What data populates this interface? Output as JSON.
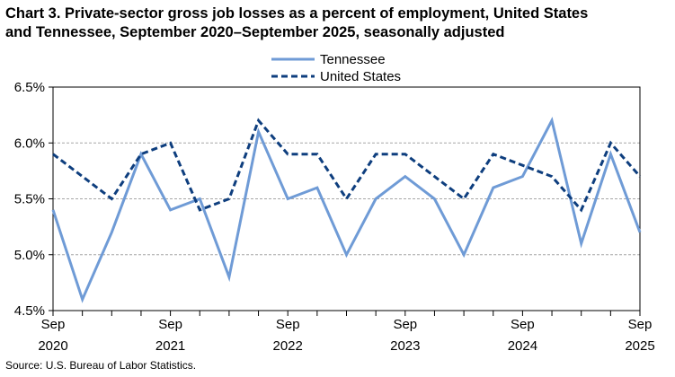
{
  "title_line1": "Chart 3. Private-sector gross job losses as a percent of employment, United States",
  "title_line2": "and Tennessee, September 2020–September 2025, seasonally adjusted",
  "source": "Source: U.S. Bureau of Labor Statistics.",
  "colors": {
    "tennessee": "#6f9bd6",
    "united_states": "#0e3e7e",
    "grid": "#a6a6a6"
  },
  "chart_data": {
    "type": "line",
    "title": "Chart 3. Private-sector gross job losses as a percent of employment, United States and Tennessee, September 2020–September 2025, seasonally adjusted",
    "x": [
      "Sep 2020",
      "Dec 2020",
      "Mar 2021",
      "Jun 2021",
      "Sep 2021",
      "Dec 2021",
      "Mar 2022",
      "Jun 2022",
      "Sep 2022",
      "Dec 2022",
      "Mar 2023",
      "Jun 2023",
      "Sep 2023",
      "Dec 2023",
      "Mar 2024",
      "Jun 2024",
      "Sep 2024",
      "Dec 2024",
      "Mar 2025",
      "Jun 2025",
      "Sep 2025"
    ],
    "x_tick_labels": [
      {
        "index": 0,
        "month": "Sep",
        "year": "2020"
      },
      {
        "index": 4,
        "month": "Sep",
        "year": "2021"
      },
      {
        "index": 8,
        "month": "Sep",
        "year": "2022"
      },
      {
        "index": 12,
        "month": "Sep",
        "year": "2023"
      },
      {
        "index": 16,
        "month": "Sep",
        "year": "2024"
      },
      {
        "index": 20,
        "month": "Sep",
        "year": "2025"
      }
    ],
    "series": [
      {
        "name": "Tennessee",
        "style": "solid",
        "values": [
          5.4,
          4.6,
          5.2,
          5.9,
          5.4,
          5.5,
          4.8,
          6.1,
          5.5,
          5.6,
          5.0,
          5.5,
          5.7,
          5.5,
          5.0,
          5.6,
          5.7,
          6.2,
          5.1,
          5.9,
          5.2
        ]
      },
      {
        "name": "United States",
        "style": "dashed",
        "values": [
          5.9,
          5.7,
          5.5,
          5.9,
          6.0,
          5.4,
          5.5,
          6.2,
          5.9,
          5.9,
          5.5,
          5.9,
          5.9,
          5.7,
          5.5,
          5.9,
          5.8,
          5.7,
          5.4,
          6.0,
          5.7
        ]
      }
    ],
    "y_ticks": [
      "4.5%",
      "5.0%",
      "5.5%",
      "6.0%",
      "6.5%"
    ],
    "ylim": [
      4.5,
      6.5
    ],
    "grid": true,
    "legend": "top-center"
  }
}
